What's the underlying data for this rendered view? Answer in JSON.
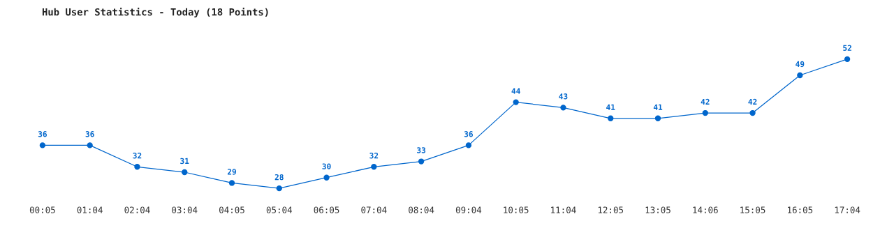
{
  "chart_data": {
    "type": "line",
    "title": "Hub User Statistics - Today (18 Points)",
    "categories": [
      "00:05",
      "01:04",
      "02:04",
      "03:04",
      "04:05",
      "05:04",
      "06:05",
      "07:04",
      "08:04",
      "09:04",
      "10:05",
      "11:04",
      "12:05",
      "13:05",
      "14:06",
      "15:05",
      "16:05",
      "17:04"
    ],
    "series": [
      {
        "color": "#0066cc",
        "values": [
          36,
          36,
          32,
          31,
          29,
          28,
          30,
          32,
          33,
          36,
          44,
          43,
          41,
          41,
          42,
          42,
          49,
          52
        ]
      }
    ],
    "data_labels": true,
    "marker": "circle",
    "line_style": "solid",
    "grid": false,
    "tick_labels": "x"
  }
}
